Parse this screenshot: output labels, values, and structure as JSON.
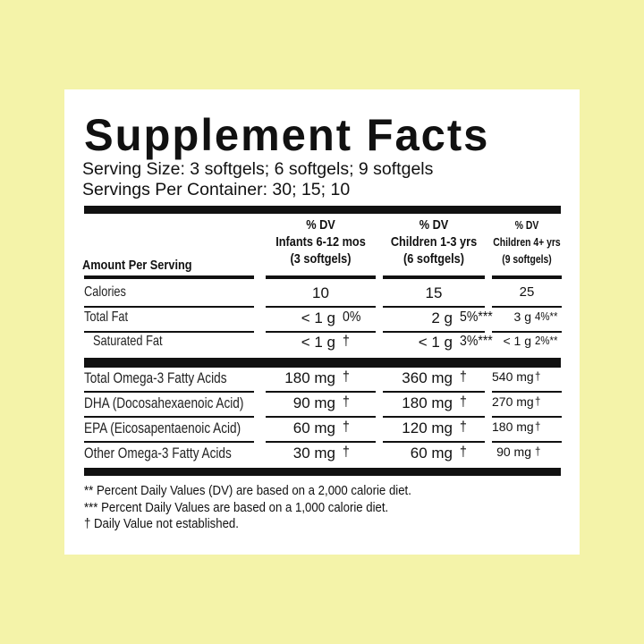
{
  "title": "Supplement Facts",
  "serving_size": "Serving Size: 3 softgels; 6 softgels; 9 softgels",
  "servings_per_container": "Servings Per Container: 30; 15; 10",
  "header": {
    "amount_label": "Amount Per Serving",
    "columns": [
      {
        "dv": "% DV",
        "group": "Infants 6-12 mos",
        "serving": "(3 softgels)"
      },
      {
        "dv": "% DV",
        "group": "Children 1-3 yrs",
        "serving": "(6 softgels)"
      },
      {
        "dv": "% DV",
        "group": "Children 4+ yrs",
        "serving": "(9 softgels)"
      }
    ]
  },
  "rows": [
    {
      "label": "Calories",
      "values": [
        {
          "amt": "10",
          "dv": ""
        },
        {
          "amt": "15",
          "dv": ""
        },
        {
          "amt": "25",
          "dv": ""
        }
      ]
    },
    {
      "label": "Total Fat",
      "values": [
        {
          "amt": "< 1 g",
          "dv": "0%"
        },
        {
          "amt": "2 g",
          "dv": "5%***"
        },
        {
          "amt": "3 g",
          "dv": "4%**"
        }
      ]
    },
    {
      "label": "Saturated Fat",
      "values": [
        {
          "amt": "< 1 g",
          "dv": "†"
        },
        {
          "amt": "< 1 g",
          "dv": "3%***"
        },
        {
          "amt": "< 1 g",
          "dv": "2%**"
        }
      ]
    },
    {
      "label": "Total Omega-3 Fatty Acids",
      "values": [
        {
          "amt": "180 mg",
          "dv": "†"
        },
        {
          "amt": "360 mg",
          "dv": "†"
        },
        {
          "amt": "540 mg",
          "dv": "†"
        }
      ]
    },
    {
      "label": "DHA (Docosahexaenoic Acid)",
      "values": [
        {
          "amt": "90 mg",
          "dv": "†"
        },
        {
          "amt": "180 mg",
          "dv": "†"
        },
        {
          "amt": "270 mg",
          "dv": "†"
        }
      ]
    },
    {
      "label": "EPA (Eicosapentaenoic Acid)",
      "values": [
        {
          "amt": "60 mg",
          "dv": "†"
        },
        {
          "amt": "120 mg",
          "dv": "†"
        },
        {
          "amt": "180 mg",
          "dv": "†"
        }
      ]
    },
    {
      "label": "Other Omega-3 Fatty Acids",
      "values": [
        {
          "amt": "30 mg",
          "dv": "†"
        },
        {
          "amt": "60 mg",
          "dv": "†"
        },
        {
          "amt": "90 mg",
          "dv": "†"
        }
      ]
    }
  ],
  "footnotes": [
    "** Percent Daily Values (DV) are based on a 2,000 calorie diet.",
    "*** Percent Daily Values are based on a 1,000 calorie diet.",
    "† Daily Value not established."
  ]
}
